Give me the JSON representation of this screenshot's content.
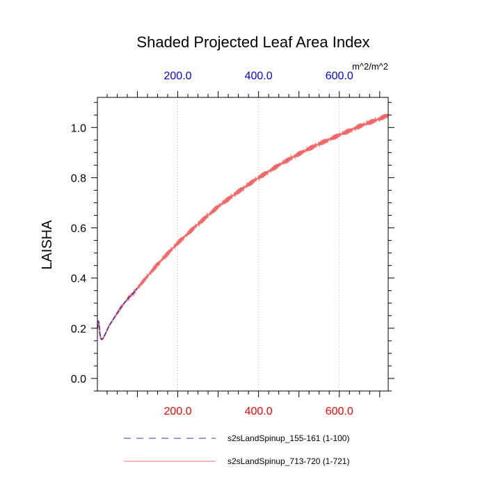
{
  "colors": {
    "axis": "#000000",
    "grid": "#b8b8b8",
    "bottom_tick_labels": "#ff0000",
    "top_tick_labels": "#0000ff",
    "series_1": "#3333cc",
    "series_2": "#ff6a6a",
    "series_2_dark": "#000000"
  },
  "chart_data": {
    "type": "line",
    "title": "Shaded Projected Leaf Area Index",
    "ylabel": "LAISHA",
    "units": "m^2/m^2",
    "xlim": [
      1,
      721
    ],
    "ylim": [
      -0.05,
      1.12
    ],
    "grid": "vertical dotted",
    "legend_placement": "bottom",
    "x_ticks_bottom": {
      "values": [
        200,
        400,
        600
      ],
      "labels": [
        "200.0",
        "400.0",
        "600.0"
      ]
    },
    "x_ticks_top": {
      "values": [
        200,
        400,
        600
      ],
      "labels": [
        "200.0",
        "400.0",
        "600.0"
      ]
    },
    "y_ticks": {
      "values": [
        0.0,
        0.2,
        0.4,
        0.6,
        0.8,
        1.0
      ],
      "labels": [
        "0.0",
        "0.2",
        "0.4",
        "0.6",
        "0.8",
        "1.0"
      ]
    },
    "series": [
      {
        "name": "s2sLandSpinup_155-161 (1-100)",
        "style": "dashed",
        "x": [
          1,
          3,
          5,
          7,
          9,
          12,
          15,
          20,
          30,
          40,
          50,
          60,
          70,
          80,
          90,
          100
        ],
        "y": [
          0.2,
          0.23,
          0.22,
          0.18,
          0.16,
          0.155,
          0.16,
          0.175,
          0.21,
          0.235,
          0.26,
          0.285,
          0.305,
          0.325,
          0.34,
          0.36
        ]
      },
      {
        "name": "s2sLandSpinup_713-720 (1-721)",
        "style": "solid",
        "oscillation_amplitude": 0.01,
        "x": [
          1,
          3,
          5,
          7,
          9,
          12,
          15,
          20,
          30,
          40,
          50,
          60,
          70,
          80,
          90,
          100,
          150,
          200,
          250,
          300,
          350,
          400,
          450,
          500,
          550,
          600,
          650,
          700,
          721
        ],
        "y": [
          0.2,
          0.23,
          0.22,
          0.18,
          0.16,
          0.155,
          0.16,
          0.175,
          0.21,
          0.235,
          0.26,
          0.285,
          0.305,
          0.325,
          0.34,
          0.36,
          0.455,
          0.54,
          0.615,
          0.685,
          0.745,
          0.8,
          0.85,
          0.895,
          0.935,
          0.97,
          1.005,
          1.035,
          1.05
        ]
      }
    ]
  }
}
